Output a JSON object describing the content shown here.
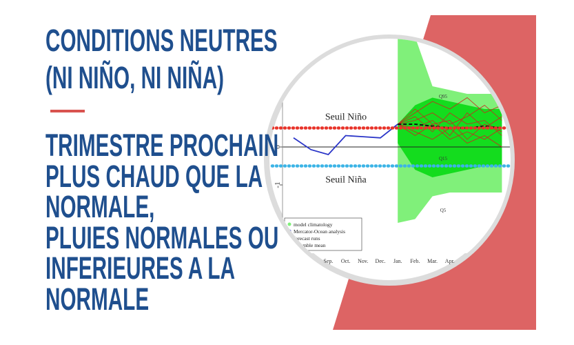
{
  "headline": {
    "lines": [
      "CONDITIONS NEUTRES",
      "(NI NIÑO, NI NIÑA)"
    ]
  },
  "subheadline": {
    "lines": [
      "TRIMESTRE PROCHAIN",
      "PLUS CHAUD QUE LA",
      "NORMALE,",
      "PLUIES NORMALES OU",
      "INFERIEURES A LA",
      "NORMALE"
    ]
  },
  "chart_data": {
    "type": "line",
    "categories": [
      null,
      null,
      "Sep.",
      "Oct.",
      "Nov.",
      "Dec.",
      "Jan.",
      "Feb.",
      "Mar.",
      "Apr.",
      null,
      null,
      null
    ],
    "ylim": [
      -2.8,
      2.8
    ],
    "yticks": [
      -1,
      0
    ],
    "hline": 0,
    "thresholds": [
      {
        "label": "Seuil Niño",
        "value": 0.5,
        "color": "#e8342a"
      },
      {
        "label": "Seuil Niña",
        "value": -0.5,
        "color": "#3cb4e6"
      }
    ],
    "bands": [
      {
        "name": "model climatology",
        "color": "#80f07a",
        "upper": [
          null,
          null,
          null,
          null,
          null,
          null,
          2.9,
          2.9,
          1.6,
          1.5,
          1.4,
          1.4,
          1.4
        ],
        "lower": [
          null,
          null,
          null,
          null,
          null,
          null,
          -2.0,
          -1.9,
          -1.3,
          -1.2,
          -1.2,
          -1.2,
          -1.2
        ]
      },
      {
        "color": "#14dc1e",
        "upper": [
          null,
          null,
          null,
          null,
          null,
          null,
          0.6,
          1.1,
          1.3,
          1.2,
          1.1,
          1.0,
          1.0
        ],
        "lower": [
          null,
          null,
          null,
          null,
          null,
          null,
          0.1,
          -0.6,
          -0.8,
          -0.7,
          -0.6,
          -0.5,
          -0.5
        ]
      }
    ],
    "band_labels": [
      "Q95",
      "Q15",
      "Q5"
    ],
    "forecast_runs": {
      "name": "forecast runs",
      "color": "#c8281e",
      "runs": [
        [
          null,
          null,
          null,
          null,
          null,
          null,
          0.6,
          0.9,
          1.2,
          1.0,
          1.3,
          0.9,
          1.1
        ],
        [
          null,
          null,
          null,
          null,
          null,
          null,
          0.6,
          0.4,
          0.2,
          0.5,
          0.1,
          0.3,
          0.0
        ],
        [
          null,
          null,
          null,
          null,
          null,
          null,
          0.6,
          0.7,
          0.9,
          0.6,
          0.8,
          1.1,
          0.7
        ],
        [
          null,
          null,
          null,
          null,
          null,
          null,
          0.6,
          0.3,
          0.6,
          0.2,
          0.4,
          0.2,
          0.5
        ],
        [
          null,
          null,
          null,
          null,
          null,
          null,
          0.6,
          0.8,
          0.4,
          0.9,
          0.6,
          0.7,
          0.3
        ],
        [
          null,
          null,
          null,
          null,
          null,
          null,
          0.6,
          0.5,
          0.7,
          0.3,
          0.9,
          0.5,
          0.8
        ],
        [
          null,
          null,
          null,
          null,
          null,
          null,
          0.6,
          1.0,
          0.6,
          0.7,
          0.2,
          0.6,
          0.4
        ]
      ]
    },
    "series": [
      {
        "name": "Mercator-Ocean analysis",
        "color": "#2a35c8",
        "values": [
          0.24,
          -0.07,
          -0.2,
          0.3,
          0.27,
          0.24,
          0.6,
          null,
          null,
          null,
          null,
          null,
          null
        ]
      },
      {
        "name": "ensemble mean",
        "color": "#111111",
        "dashed": true,
        "values": [
          null,
          null,
          null,
          null,
          null,
          null,
          0.6,
          0.6,
          0.55,
          0.5,
          0.5,
          0.55,
          0.5
        ]
      }
    ]
  }
}
